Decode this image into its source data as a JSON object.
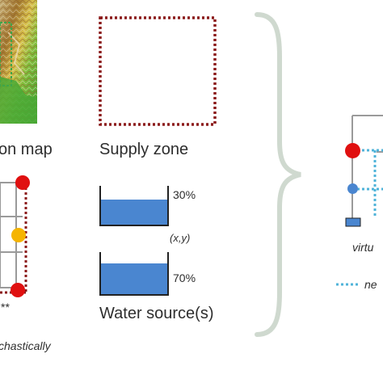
{
  "labels": {
    "elevation_map": "on map",
    "supply_zone": "Supply zone",
    "percent_top": "30%",
    "coords": "(x,y)",
    "percent_bottom": "70%",
    "water_sources": "Water source(s)",
    "stars": "**",
    "stochastic": "chastically",
    "virtual": "virtu",
    "new": "ne"
  },
  "tanks": {
    "top_fill_percent": 30,
    "bottom_fill_percent": 70
  },
  "colors": {
    "zone_border": "#8b1a1a",
    "water_fill": "#4a86d0",
    "grid_line": "#9a9a9a",
    "node_red": "#e01010",
    "node_yellow": "#f5b400",
    "node_blue": "#4a86d0",
    "dotted_blue": "#4fb3d9",
    "brace": "#cfd9cf"
  }
}
